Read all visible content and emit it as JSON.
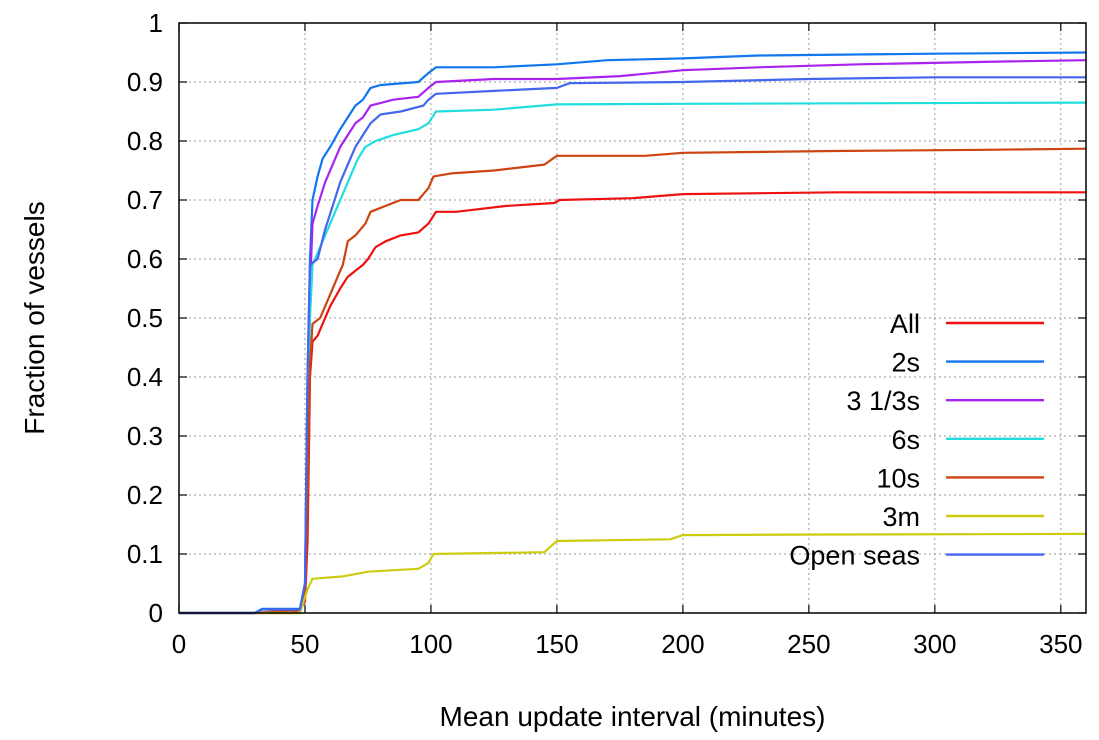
{
  "chart_data": {
    "type": "line",
    "title": "",
    "xlabel": "Mean update interval (minutes)",
    "ylabel": "Fraction of vessels",
    "xlim": [
      0,
      360
    ],
    "ylim": [
      0,
      1
    ],
    "x_ticks": [
      "0",
      "50",
      "100",
      "150",
      "200",
      "250",
      "300",
      "350"
    ],
    "y_ticks": [
      "0",
      "0.1",
      "0.2",
      "0.3",
      "0.4",
      "0.5",
      "0.6",
      "0.7",
      "0.8",
      "0.9",
      "1"
    ],
    "grid": true,
    "legend_position": "bottom-right",
    "series": [
      {
        "name": "All",
        "color": "#ee1111",
        "points": [
          [
            0,
            0
          ],
          [
            30,
            0
          ],
          [
            45,
            0
          ],
          [
            48,
            0.005
          ],
          [
            50,
            0.02
          ],
          [
            51,
            0.12
          ],
          [
            51.5,
            0.26
          ],
          [
            52,
            0.4
          ],
          [
            53,
            0.46
          ],
          [
            55,
            0.47
          ],
          [
            58,
            0.5
          ],
          [
            60,
            0.52
          ],
          [
            64,
            0.55
          ],
          [
            67,
            0.57
          ],
          [
            70,
            0.58
          ],
          [
            73,
            0.59
          ],
          [
            75,
            0.6
          ],
          [
            78,
            0.62
          ],
          [
            82,
            0.63
          ],
          [
            88,
            0.64
          ],
          [
            95,
            0.645
          ],
          [
            99,
            0.66
          ],
          [
            102,
            0.68
          ],
          [
            110,
            0.68
          ],
          [
            130,
            0.69
          ],
          [
            149,
            0.695
          ],
          [
            151,
            0.7
          ],
          [
            180,
            0.703
          ],
          [
            200,
            0.71
          ],
          [
            262,
            0.713
          ],
          [
            360,
            0.713
          ]
        ]
      },
      {
        "name": "2s",
        "color": "#1177ee",
        "points": [
          [
            0,
            0
          ],
          [
            30,
            0
          ],
          [
            33,
            0.007
          ],
          [
            48,
            0.007
          ],
          [
            50,
            0.05
          ],
          [
            51,
            0.4
          ],
          [
            52,
            0.6
          ],
          [
            53,
            0.7
          ],
          [
            55,
            0.74
          ],
          [
            57,
            0.77
          ],
          [
            60,
            0.79
          ],
          [
            64,
            0.82
          ],
          [
            67,
            0.84
          ],
          [
            70,
            0.86
          ],
          [
            73,
            0.87
          ],
          [
            76,
            0.89
          ],
          [
            80,
            0.895
          ],
          [
            95,
            0.9
          ],
          [
            99,
            0.915
          ],
          [
            102,
            0.925
          ],
          [
            125,
            0.925
          ],
          [
            150,
            0.93
          ],
          [
            170,
            0.937
          ],
          [
            200,
            0.94
          ],
          [
            230,
            0.945
          ],
          [
            300,
            0.948
          ],
          [
            360,
            0.95
          ]
        ]
      },
      {
        "name": "3 1/3s",
        "color": "#aa22ee",
        "points": [
          [
            0,
            0
          ],
          [
            30,
            0
          ],
          [
            48,
            0.005
          ],
          [
            50,
            0.04
          ],
          [
            51,
            0.35
          ],
          [
            52,
            0.55
          ],
          [
            53,
            0.66
          ],
          [
            55,
            0.69
          ],
          [
            58,
            0.73
          ],
          [
            61,
            0.76
          ],
          [
            64,
            0.79
          ],
          [
            67,
            0.81
          ],
          [
            70,
            0.83
          ],
          [
            73,
            0.84
          ],
          [
            76,
            0.86
          ],
          [
            85,
            0.87
          ],
          [
            95,
            0.875
          ],
          [
            99,
            0.89
          ],
          [
            102,
            0.9
          ],
          [
            125,
            0.905
          ],
          [
            150,
            0.905
          ],
          [
            175,
            0.91
          ],
          [
            200,
            0.92
          ],
          [
            230,
            0.925
          ],
          [
            270,
            0.93
          ],
          [
            330,
            0.935
          ],
          [
            360,
            0.937
          ]
        ]
      },
      {
        "name": "6s",
        "color": "#22dddd",
        "points": [
          [
            0,
            0
          ],
          [
            30,
            0
          ],
          [
            48,
            0.005
          ],
          [
            50,
            0.04
          ],
          [
            51,
            0.3
          ],
          [
            52,
            0.5
          ],
          [
            53,
            0.59
          ],
          [
            55,
            0.61
          ],
          [
            58,
            0.64
          ],
          [
            62,
            0.68
          ],
          [
            65,
            0.71
          ],
          [
            68,
            0.74
          ],
          [
            71,
            0.77
          ],
          [
            74,
            0.79
          ],
          [
            78,
            0.8
          ],
          [
            85,
            0.81
          ],
          [
            95,
            0.82
          ],
          [
            99,
            0.83
          ],
          [
            102,
            0.85
          ],
          [
            125,
            0.853
          ],
          [
            150,
            0.862
          ],
          [
            200,
            0.863
          ],
          [
            360,
            0.865
          ]
        ]
      },
      {
        "name": "10s",
        "color": "#cc4411",
        "points": [
          [
            0,
            0
          ],
          [
            30,
            0
          ],
          [
            48,
            0.005
          ],
          [
            50,
            0.03
          ],
          [
            51,
            0.2
          ],
          [
            52,
            0.42
          ],
          [
            53,
            0.49
          ],
          [
            56,
            0.5
          ],
          [
            60,
            0.54
          ],
          [
            63,
            0.57
          ],
          [
            65,
            0.59
          ],
          [
            67,
            0.63
          ],
          [
            70,
            0.64
          ],
          [
            74,
            0.66
          ],
          [
            76,
            0.68
          ],
          [
            82,
            0.69
          ],
          [
            88,
            0.7
          ],
          [
            95,
            0.7
          ],
          [
            99,
            0.72
          ],
          [
            101,
            0.74
          ],
          [
            108,
            0.745
          ],
          [
            125,
            0.75
          ],
          [
            145,
            0.76
          ],
          [
            150,
            0.775
          ],
          [
            185,
            0.775
          ],
          [
            200,
            0.78
          ],
          [
            260,
            0.783
          ],
          [
            320,
            0.785
          ],
          [
            360,
            0.787
          ]
        ]
      },
      {
        "name": "3m",
        "color": "#cccc11",
        "points": [
          [
            0,
            0
          ],
          [
            30,
            0
          ],
          [
            48,
            0
          ],
          [
            51,
            0.04
          ],
          [
            53,
            0.058
          ],
          [
            65,
            0.062
          ],
          [
            75,
            0.07
          ],
          [
            95,
            0.075
          ],
          [
            99,
            0.085
          ],
          [
            101,
            0.1
          ],
          [
            145,
            0.103
          ],
          [
            150,
            0.122
          ],
          [
            195,
            0.125
          ],
          [
            200,
            0.132
          ],
          [
            260,
            0.133
          ],
          [
            360,
            0.134
          ]
        ]
      },
      {
        "name": "Open seas",
        "color": "#4466ee",
        "points": [
          [
            0,
            0
          ],
          [
            30,
            0
          ],
          [
            33,
            0.006
          ],
          [
            48,
            0.006
          ],
          [
            50,
            0.05
          ],
          [
            51,
            0.4
          ],
          [
            52,
            0.59
          ],
          [
            55,
            0.6
          ],
          [
            58,
            0.65
          ],
          [
            61,
            0.69
          ],
          [
            64,
            0.73
          ],
          [
            67,
            0.76
          ],
          [
            70,
            0.79
          ],
          [
            73,
            0.81
          ],
          [
            76,
            0.83
          ],
          [
            80,
            0.845
          ],
          [
            88,
            0.85
          ],
          [
            97,
            0.86
          ],
          [
            99,
            0.87
          ],
          [
            102,
            0.88
          ],
          [
            125,
            0.885
          ],
          [
            150,
            0.89
          ],
          [
            155,
            0.898
          ],
          [
            200,
            0.9
          ],
          [
            250,
            0.905
          ],
          [
            300,
            0.908
          ],
          [
            360,
            0.908
          ]
        ]
      }
    ]
  }
}
